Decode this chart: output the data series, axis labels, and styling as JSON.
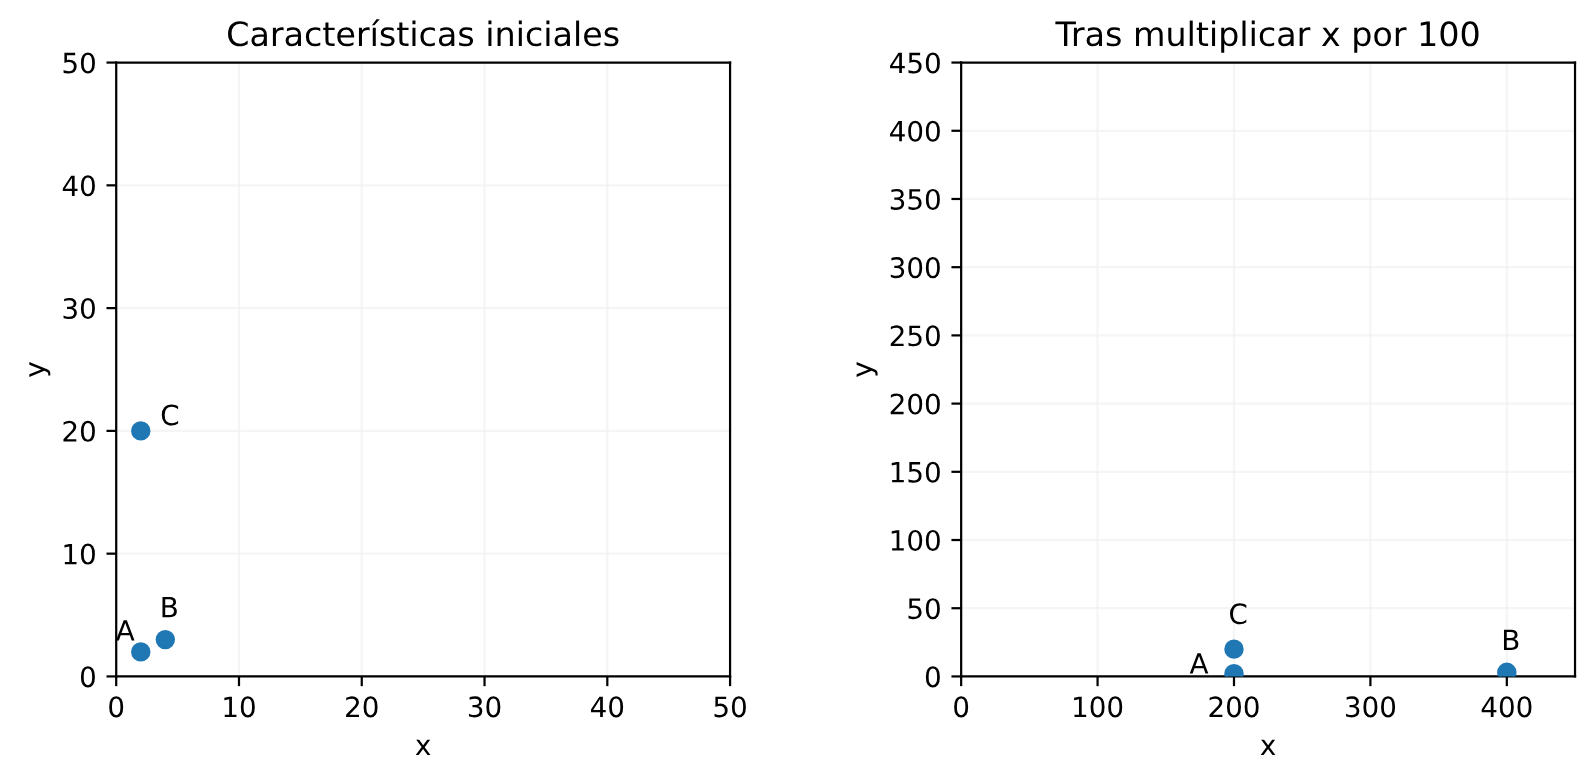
{
  "chart_data": [
    {
      "type": "scatter",
      "title": "Características iniciales",
      "xlabel": "x",
      "ylabel": "y",
      "x": [
        2,
        4,
        2
      ],
      "series": [
        {
          "color": "#1f77b4",
          "values": [
            2,
            3,
            20
          ]
        }
      ],
      "xlim": [
        0,
        50
      ],
      "ylim": [
        0,
        50
      ],
      "xticks": [
        0,
        10,
        20,
        30,
        40,
        50
      ],
      "yticks": [
        0,
        10,
        20,
        30,
        40,
        50
      ],
      "grid": true,
      "marker": "circle",
      "annotations": [
        {
          "text": "A",
          "x": 2,
          "y": 2
        },
        {
          "text": "B",
          "x": 4,
          "y": 3
        },
        {
          "text": "C",
          "x": 2,
          "y": 20
        }
      ]
    },
    {
      "type": "scatter",
      "title": "Tras multiplicar x por 100",
      "xlabel": "x",
      "ylabel": "y",
      "x": [
        200,
        400,
        200
      ],
      "series": [
        {
          "color": "#1f77b4",
          "values": [
            2,
            3,
            20
          ]
        }
      ],
      "xlim": [
        0,
        450
      ],
      "ylim": [
        0,
        450
      ],
      "xticks": [
        0,
        100,
        200,
        300,
        400
      ],
      "yticks": [
        0,
        50,
        100,
        150,
        200,
        250,
        300,
        350,
        400,
        450
      ],
      "grid": true,
      "marker": "circle",
      "annotations": [
        {
          "text": "A",
          "x": 200,
          "y": 2
        },
        {
          "text": "B",
          "x": 400,
          "y": 3
        },
        {
          "text": "C",
          "x": 200,
          "y": 20
        }
      ]
    }
  ]
}
